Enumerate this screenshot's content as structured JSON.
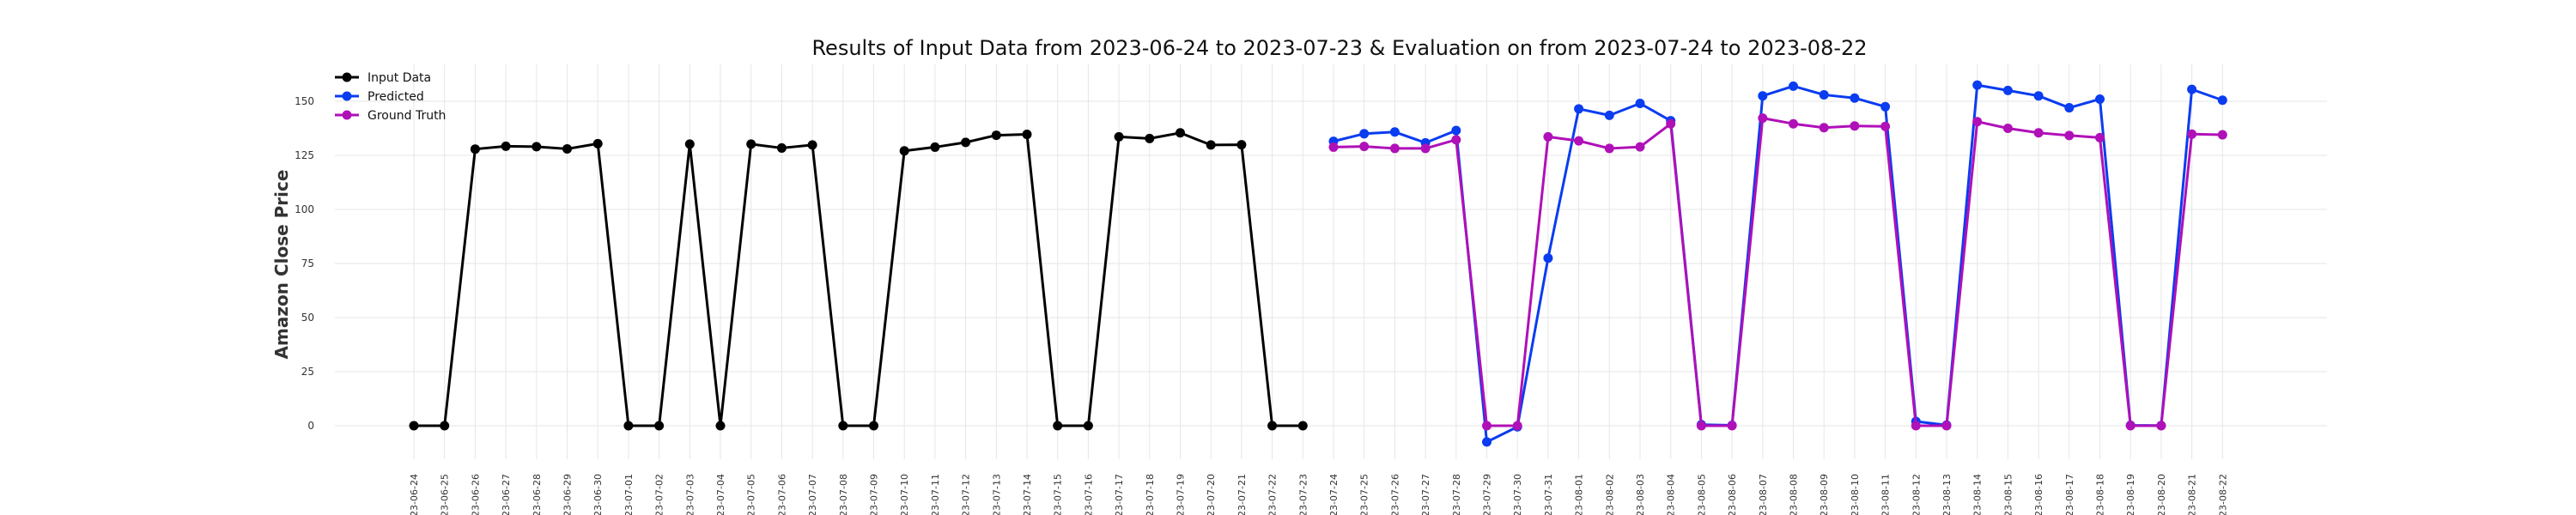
{
  "chart_data": {
    "type": "line",
    "title": "Results of Input Data from 2023-06-24 to 2023-07-23 & Evaluation on from 2023-07-24 to 2023-08-22",
    "xlabel": "",
    "ylabel": "Amazon Close Price",
    "ylim": [
      -18,
      165
    ],
    "y_ticks": [
      0,
      25,
      50,
      75,
      100,
      125,
      150
    ],
    "grid": true,
    "legend_position": "top-left",
    "x_tick_labels": [
      "-23-06-24",
      "-23-06-25",
      "-23-06-26",
      "-23-06-27",
      "-23-06-28",
      "-23-06-29",
      "-23-06-30",
      "-23-07-01",
      "-23-07-02",
      "-23-07-03",
      "-23-07-04",
      "-23-07-05",
      "-23-07-06",
      "-23-07-07",
      "-23-07-08",
      "-23-07-09",
      "-23-07-10",
      "-23-07-11",
      "-23-07-12",
      "-23-07-13",
      "-23-07-14",
      "-23-07-15",
      "-23-07-16",
      "-23-07-17",
      "-23-07-18",
      "-23-07-19",
      "-23-07-20",
      "-23-07-21",
      "-23-07-22",
      "-23-07-23",
      "-23-07-24",
      "-23-07-25",
      "-23-07-26",
      "-23-07-27",
      "-23-07-28",
      "-23-07-29",
      "-23-07-30",
      "-23-07-31",
      "-23-08-01",
      "-23-08-02",
      "-23-08-03",
      "-23-08-04",
      "-23-08-05",
      "-23-08-06",
      "-23-08-07",
      "-23-08-08",
      "-23-08-09",
      "-23-08-10",
      "-23-08-11",
      "-23-08-12",
      "-23-08-13",
      "-23-08-14",
      "-23-08-15",
      "-23-08-16",
      "-23-08-17",
      "-23-08-18",
      "-23-08-19",
      "-23-08-20",
      "-23-08-21",
      "-23-08-22"
    ],
    "series": [
      {
        "name": "Input Data",
        "color": "#000000",
        "x": [
          "2023-06-24",
          "2023-06-25",
          "2023-06-26",
          "2023-06-27",
          "2023-06-28",
          "2023-06-29",
          "2023-06-30",
          "2023-07-01",
          "2023-07-02",
          "2023-07-03",
          "2023-07-04",
          "2023-07-05",
          "2023-07-06",
          "2023-07-07",
          "2023-07-08",
          "2023-07-09",
          "2023-07-10",
          "2023-07-11",
          "2023-07-12",
          "2023-07-13",
          "2023-07-14",
          "2023-07-15",
          "2023-07-16",
          "2023-07-17",
          "2023-07-18",
          "2023-07-19",
          "2023-07-20",
          "2023-07-21",
          "2023-07-22",
          "2023-07-23"
        ],
        "values": [
          0,
          0,
          127.9,
          129.2,
          129.0,
          128.0,
          130.4,
          0,
          0,
          130.2,
          0,
          130.2,
          128.4,
          129.8,
          0,
          0,
          127.1,
          128.8,
          131.0,
          134.3,
          134.7,
          0,
          0,
          133.6,
          132.8,
          135.4,
          129.8,
          129.9,
          0,
          0
        ]
      },
      {
        "name": "Predicted",
        "color": "#0a3cf0",
        "x": [
          "2023-07-24",
          "2023-07-25",
          "2023-07-26",
          "2023-07-27",
          "2023-07-28",
          "2023-07-29",
          "2023-07-30",
          "2023-07-31",
          "2023-08-01",
          "2023-08-02",
          "2023-08-03",
          "2023-08-04",
          "2023-08-05",
          "2023-08-06",
          "2023-08-07",
          "2023-08-08",
          "2023-08-09",
          "2023-08-10",
          "2023-08-11",
          "2023-08-12",
          "2023-08-13",
          "2023-08-14",
          "2023-08-15",
          "2023-08-16",
          "2023-08-17",
          "2023-08-18",
          "2023-08-19",
          "2023-08-20",
          "2023-08-21",
          "2023-08-22"
        ],
        "values": [
          131.5,
          135.0,
          135.8,
          130.8,
          136.5,
          -7.5,
          -0.5,
          77.5,
          146.5,
          143.5,
          149.0,
          141.0,
          0.5,
          0.2,
          152.5,
          157.0,
          153.0,
          151.5,
          147.5,
          2.0,
          0.3,
          157.5,
          155.0,
          152.5,
          147.0,
          151.0,
          0.2,
          0.1,
          155.5,
          150.5
        ]
      },
      {
        "name": "Ground Truth",
        "color": "#b010b8",
        "x": [
          "2023-07-24",
          "2023-07-25",
          "2023-07-26",
          "2023-07-27",
          "2023-07-28",
          "2023-07-29",
          "2023-07-30",
          "2023-07-31",
          "2023-08-01",
          "2023-08-02",
          "2023-08-03",
          "2023-08-04",
          "2023-08-05",
          "2023-08-06",
          "2023-08-07",
          "2023-08-08",
          "2023-08-09",
          "2023-08-10",
          "2023-08-11",
          "2023-08-12",
          "2023-08-13",
          "2023-08-14",
          "2023-08-15",
          "2023-08-16",
          "2023-08-17",
          "2023-08-18",
          "2023-08-19",
          "2023-08-20",
          "2023-08-21",
          "2023-08-22"
        ],
        "values": [
          128.8,
          129.1,
          128.2,
          128.2,
          132.2,
          0,
          0,
          133.6,
          131.7,
          128.2,
          128.9,
          139.6,
          0,
          0,
          142.2,
          139.6,
          137.8,
          138.6,
          138.4,
          0,
          0,
          140.6,
          137.5,
          135.4,
          134.2,
          133.2,
          0,
          0,
          134.8,
          134.5
        ]
      }
    ]
  }
}
